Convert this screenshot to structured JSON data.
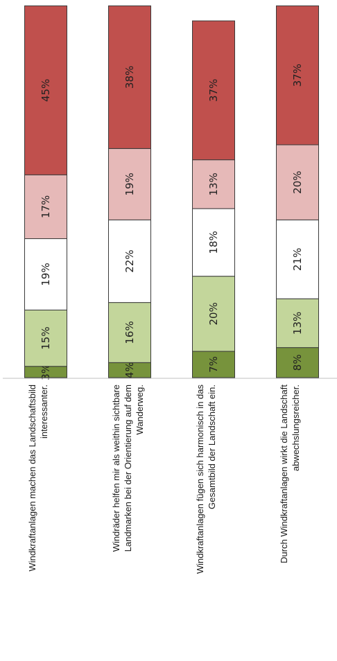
{
  "chart_data": {
    "type": "bar",
    "orientation": "horizontal-stacked",
    "rotated": "90deg-clockwise",
    "xlim": [
      0,
      100
    ],
    "categories": [
      [
        "Windkraftanlagen machen das Landschaftsbild",
        "interessanter."
      ],
      [
        "Windräder helfen mir als weithin sichtbare",
        "Landmarken bei der Orientierung auf dem",
        "Wanderweg."
      ],
      [
        "Windkraftanlagen fügen sich harmonisch in das",
        "Gesamtbild der Landschaft ein."
      ],
      [
        "Durch Windkraftanlagen wirkt die Landschaft",
        "abwechslungsreicher."
      ]
    ],
    "series": [
      {
        "color": "#77933c",
        "values": [
          3,
          4,
          7,
          8
        ],
        "labels": [
          "3%",
          "4%",
          "7%",
          "8%"
        ]
      },
      {
        "color": "#c3d69b",
        "values": [
          15,
          16,
          20,
          13
        ],
        "labels": [
          "15%",
          "16%",
          "20%",
          "13%"
        ]
      },
      {
        "color": "#ffffff",
        "values": [
          19,
          22,
          18,
          21
        ],
        "labels": [
          "19%",
          "22%",
          "18%",
          "21%"
        ]
      },
      {
        "color": "#e6b9b8",
        "values": [
          17,
          19,
          13,
          20
        ],
        "labels": [
          "17%",
          "19%",
          "13%",
          "20%"
        ]
      },
      {
        "color": "#c0504d",
        "values": [
          45,
          38,
          37,
          37
        ],
        "labels": [
          "45%",
          "38%",
          "37%",
          "37%"
        ]
      }
    ],
    "axis_color": "#bfbfbf",
    "grid": false,
    "legend": "none"
  }
}
